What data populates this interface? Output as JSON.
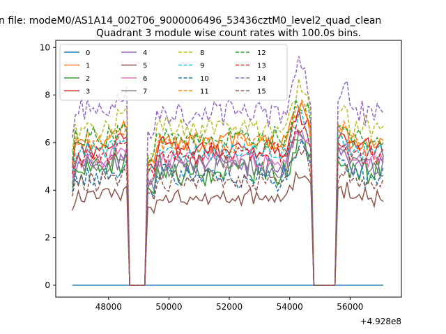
{
  "chart_data": {
    "type": "line",
    "suptitle": "n file: modeM0/AS1A14_002T06_9000006496_53436cztM0_level2_quad_clean",
    "title": "Quadrant 3 module wise count rates with 100.0s bins.",
    "x_offset_label": "+4.928e8",
    "xlim": [
      46250,
      57700
    ],
    "ylim": [
      -0.5,
      10.3
    ],
    "x_ticks": [
      48000,
      50000,
      52000,
      54000,
      56000
    ],
    "x_tick_labels": [
      "48000",
      "50000",
      "52000",
      "54000",
      "56000"
    ],
    "y_ticks": [
      0,
      2,
      4,
      6,
      8,
      10
    ],
    "y_tick_labels": [
      "0",
      "2",
      "4",
      "6",
      "8",
      "10"
    ],
    "legend_position": "top-left",
    "segment_bounds": {
      "x_start": 46800,
      "x_end": 57100,
      "gap1": [
        48700,
        49200
      ],
      "gap2": [
        54800,
        55500
      ],
      "step": 100
    },
    "series": [
      {
        "name": "0",
        "color": "#1f77b4",
        "style": "solid",
        "base": 0.0,
        "amp": 0.0
      },
      {
        "name": "1",
        "color": "#ff7f0e",
        "style": "solid",
        "base": 6.0,
        "amp": 0.35
      },
      {
        "name": "2",
        "color": "#2ca02c",
        "style": "solid",
        "base": 4.8,
        "amp": 0.45
      },
      {
        "name": "3",
        "color": "#d62728",
        "style": "solid",
        "base": 5.8,
        "amp": 0.35
      },
      {
        "name": "4",
        "color": "#9467bd",
        "style": "solid",
        "base": 5.1,
        "amp": 0.4
      },
      {
        "name": "5",
        "color": "#8c564b",
        "style": "solid",
        "base": 3.7,
        "amp": 0.3
      },
      {
        "name": "6",
        "color": "#e377c2",
        "style": "solid",
        "base": 5.3,
        "amp": 0.35
      },
      {
        "name": "7",
        "color": "#7f7f7f",
        "style": "solid",
        "base": 5.0,
        "amp": 0.4
      },
      {
        "name": "8",
        "color": "#bcbd22",
        "style": "dashed",
        "base": 6.6,
        "amp": 0.4
      },
      {
        "name": "9",
        "color": "#17becf",
        "style": "dashed",
        "base": 5.6,
        "amp": 0.35
      },
      {
        "name": "10",
        "color": "#1f77b4",
        "style": "dashed",
        "base": 4.6,
        "amp": 0.45
      },
      {
        "name": "11",
        "color": "#ff7f0e",
        "style": "dashed",
        "base": 6.0,
        "amp": 0.35
      },
      {
        "name": "12",
        "color": "#2ca02c",
        "style": "dashed",
        "base": 6.2,
        "amp": 0.35
      },
      {
        "name": "13",
        "color": "#d62728",
        "style": "dashed",
        "base": 5.5,
        "amp": 0.35
      },
      {
        "name": "14",
        "color": "#9467bd",
        "style": "dashed",
        "base": 7.3,
        "amp": 0.45
      },
      {
        "name": "15",
        "color": "#8c564b",
        "style": "dashed",
        "base": 4.4,
        "amp": 0.35
      }
    ]
  }
}
